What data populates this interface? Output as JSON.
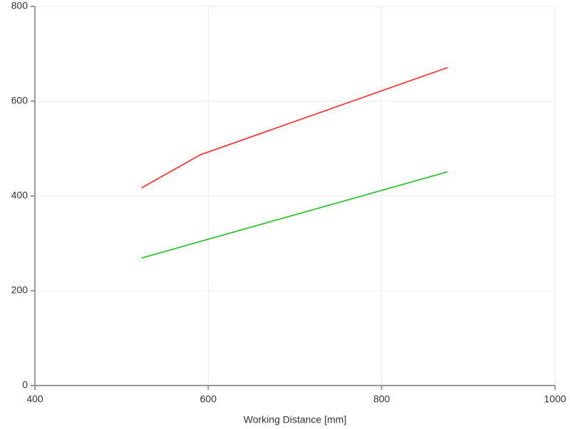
{
  "chart_data": {
    "type": "line",
    "x_label": "Working Distance [mm]",
    "xlim": [
      400,
      1000
    ],
    "xticks": [
      400,
      600,
      800,
      1000
    ],
    "ylim": [
      0,
      800
    ],
    "yticks": [
      0,
      200,
      400,
      600,
      800
    ],
    "grid": true,
    "series": [
      {
        "color": "#ff3b3b",
        "x": [
          523,
          591,
          876
        ],
        "values": [
          417,
          487,
          671
        ]
      },
      {
        "color": "#33c433",
        "x": [
          523,
          876
        ],
        "values": [
          269,
          451
        ]
      }
    ]
  }
}
